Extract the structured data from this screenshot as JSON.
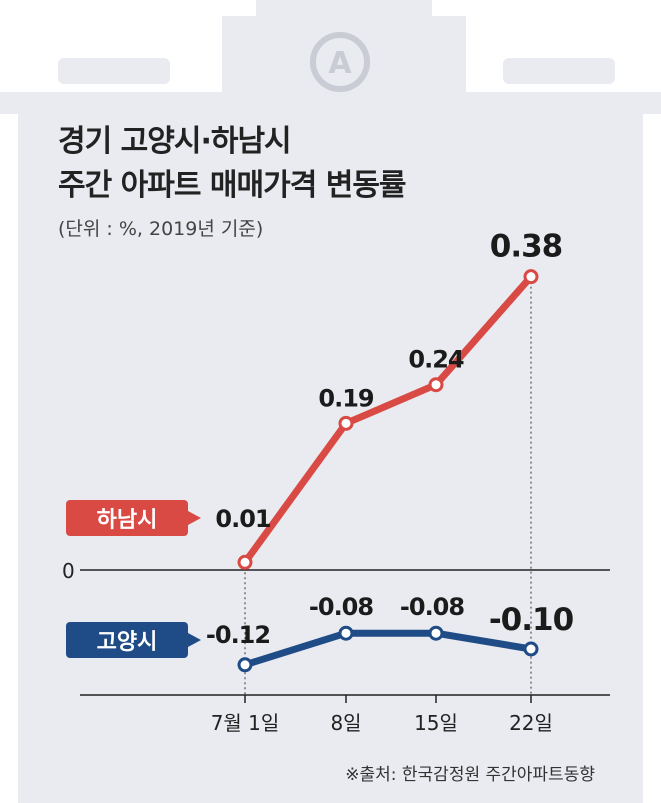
{
  "chart_data": {
    "type": "line",
    "title": "경기 고양시·하남시",
    "subtitle": "주간 아파트 매매가격 변동률",
    "unit_note": "(단위 : %, 2019년 기준)",
    "categories": [
      "7월 1일",
      "8일",
      "15일",
      "22일"
    ],
    "zero_label": "0",
    "series": [
      {
        "name": "하남시",
        "values": [
          0.01,
          0.19,
          0.24,
          0.38
        ],
        "labels": [
          "0.01",
          "0.19",
          "0.24",
          "0.38"
        ],
        "color": "#d94a45"
      },
      {
        "name": "고양시",
        "values": [
          -0.12,
          -0.08,
          -0.08,
          -0.1
        ],
        "labels": [
          "-0.12",
          "-0.08",
          "-0.08",
          "-0.10"
        ],
        "color": "#1f4c86"
      }
    ],
    "source": "※출처: 한국감정원 주간아파트동향",
    "background_color": "#e9ebf0",
    "logo_text": "A"
  }
}
